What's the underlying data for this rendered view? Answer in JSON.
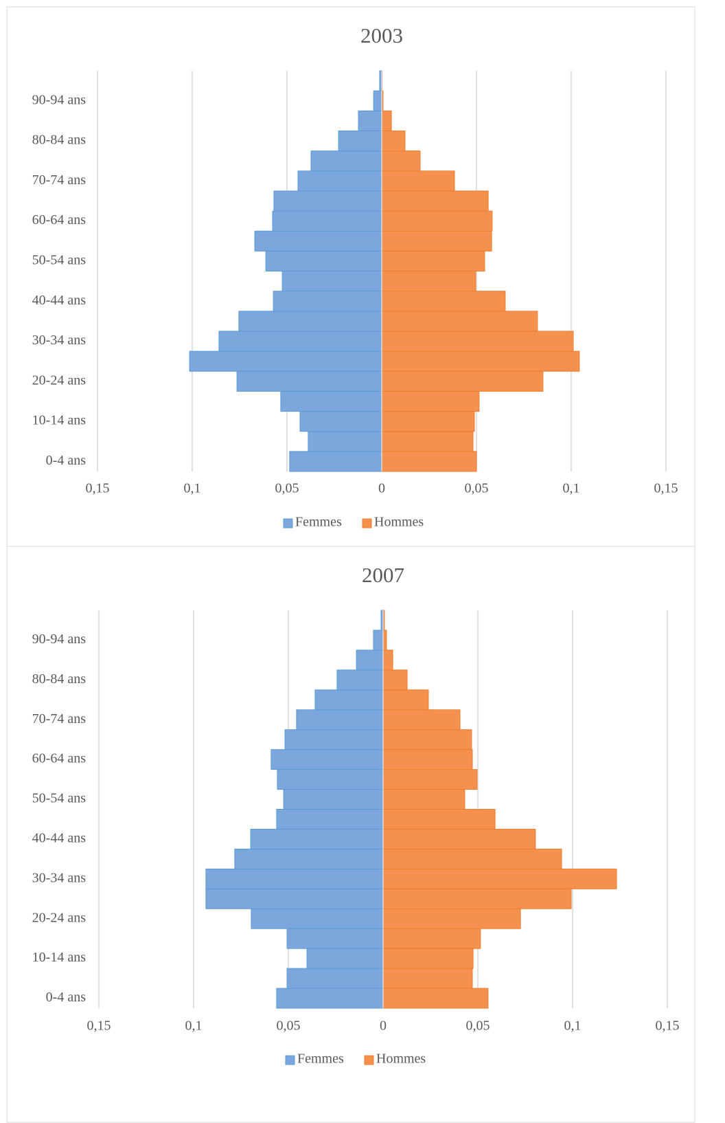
{
  "chart_data": [
    {
      "type": "bar",
      "orientation": "horizontal",
      "title": "2003",
      "categories": [
        "0-4 ans",
        null,
        "10-14 ans",
        null,
        "20-24 ans",
        null,
        "30-34 ans",
        null,
        "40-44 ans",
        null,
        "50-54 ans",
        null,
        "60-64 ans",
        null,
        "70-74 ans",
        null,
        "80-84 ans",
        null,
        "90-94 ans",
        null
      ],
      "series": [
        {
          "name": "Femmes",
          "color": "#7ba7dc",
          "values": [
            -0.0486,
            -0.0388,
            -0.0431,
            -0.0533,
            -0.0764,
            -0.1014,
            -0.0859,
            -0.0754,
            -0.0572,
            -0.0525,
            -0.0612,
            -0.067,
            -0.0576,
            -0.0569,
            -0.0442,
            -0.0373,
            -0.0228,
            -0.0123,
            -0.0043,
            -0.0011
          ]
        },
        {
          "name": "Hommes",
          "color": "#f4914e",
          "values": [
            0.05,
            0.0482,
            0.0489,
            0.0514,
            0.0851,
            0.1043,
            0.1011,
            0.0822,
            0.0652,
            0.0496,
            0.0543,
            0.058,
            0.0583,
            0.0562,
            0.0384,
            0.0203,
            0.0123,
            0.0051,
            0.0007,
            0.0002
          ]
        }
      ],
      "xlim": [
        -0.15,
        0.15
      ],
      "xticks": [
        {
          "value": -0.15,
          "label": "0,15"
        },
        {
          "value": -0.1,
          "label": "0,1"
        },
        {
          "value": -0.05,
          "label": "0,05"
        },
        0,
        {
          "value": 0.05,
          "label": "0,05"
        },
        {
          "value": 0.1,
          "label": "0,1"
        },
        {
          "value": 0.15,
          "label": "0,15"
        }
      ],
      "grid": true,
      "legend": "bottom"
    },
    {
      "type": "bar",
      "orientation": "horizontal",
      "title": "2007",
      "categories": [
        "0-4 ans",
        null,
        "10-14 ans",
        null,
        "20-24 ans",
        null,
        "30-34 ans",
        null,
        "40-44 ans",
        null,
        "50-54 ans",
        null,
        "60-64 ans",
        null,
        "70-74 ans",
        null,
        "80-84 ans",
        null,
        "90-94 ans",
        null
      ],
      "series": [
        {
          "name": "Femmes",
          "color": "#7ba7dc",
          "values": [
            -0.0562,
            -0.0507,
            -0.0402,
            -0.0507,
            -0.0696,
            -0.0935,
            -0.0935,
            -0.0783,
            -0.0699,
            -0.0562,
            -0.0525,
            -0.0558,
            -0.0591,
            -0.0518,
            -0.0457,
            -0.0359,
            -0.0243,
            -0.0141,
            -0.0051,
            -0.0011
          ]
        },
        {
          "name": "Hommes",
          "color": "#f4914e",
          "values": [
            0.0554,
            0.0471,
            0.0475,
            0.0514,
            0.0725,
            0.0993,
            0.1232,
            0.0942,
            0.0804,
            0.0591,
            0.0431,
            0.0496,
            0.0471,
            0.0467,
            0.0406,
            0.0239,
            0.0127,
            0.0051,
            0.0018,
            0.0007
          ]
        }
      ],
      "xlim": [
        -0.15,
        0.15
      ],
      "xticks": [
        {
          "value": -0.15,
          "label": "0,15"
        },
        {
          "value": -0.1,
          "label": "0,1"
        },
        {
          "value": -0.05,
          "label": "0,05"
        },
        0,
        {
          "value": 0.05,
          "label": "0,05"
        },
        {
          "value": 0.1,
          "label": "0,1"
        },
        {
          "value": 0.15,
          "label": "0,15"
        }
      ],
      "grid": true,
      "legend": "bottom"
    }
  ]
}
